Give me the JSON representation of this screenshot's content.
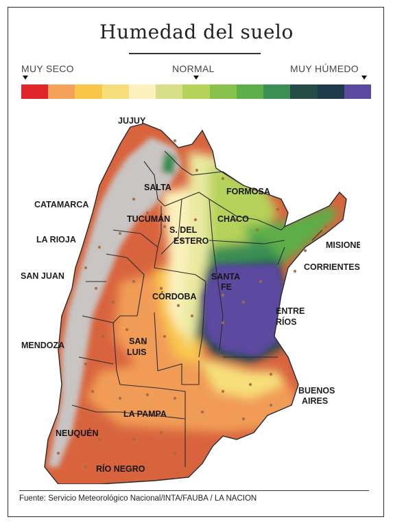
{
  "title": "Humedad del suelo",
  "scale": {
    "label_dry": "MUY SECO",
    "label_normal": "NORMAL",
    "label_wet": "MUY HÚMEDO",
    "colors": [
      "#e0262b",
      "#f4a259",
      "#f9c64a",
      "#f6df7a",
      "#fbf1bc",
      "#d9df88",
      "#b5d25a",
      "#86c24c",
      "#5cae4a",
      "#3a8f52",
      "#244d48",
      "#1d3a4a",
      "#5b4aa0"
    ]
  },
  "provinces": {
    "jujuy": "JUJUY",
    "salta": "SALTA",
    "formosa": "FORMOSA",
    "catamarca": "CATAMARCA",
    "tucuman": "TUCUMÁN",
    "chaco": "CHACO",
    "sdel": "S. DEL",
    "estero": "ESTERO",
    "misiones": "MISIONES",
    "la_rioja": "LA RIOJA",
    "corrientes": "CORRIENTES",
    "san_juan": "SAN JUAN",
    "santa": "SANTA",
    "fe": "FE",
    "cordoba": "CÓRDOBA",
    "entre": "ENTRE",
    "rios": "RÍOS",
    "mendoza": "MENDOZA",
    "san": "SAN",
    "luis": "LUIS",
    "buenos": "BUENOS",
    "aires": "AIRES",
    "la_pampa": "LA PAMPA",
    "neuquen": "NEUQUÉN",
    "rio_negro": "RÍO NEGRO"
  },
  "source": "Fuente: Servicio Meteorológico Nacional/INTA/FAUBA / LA NACION"
}
